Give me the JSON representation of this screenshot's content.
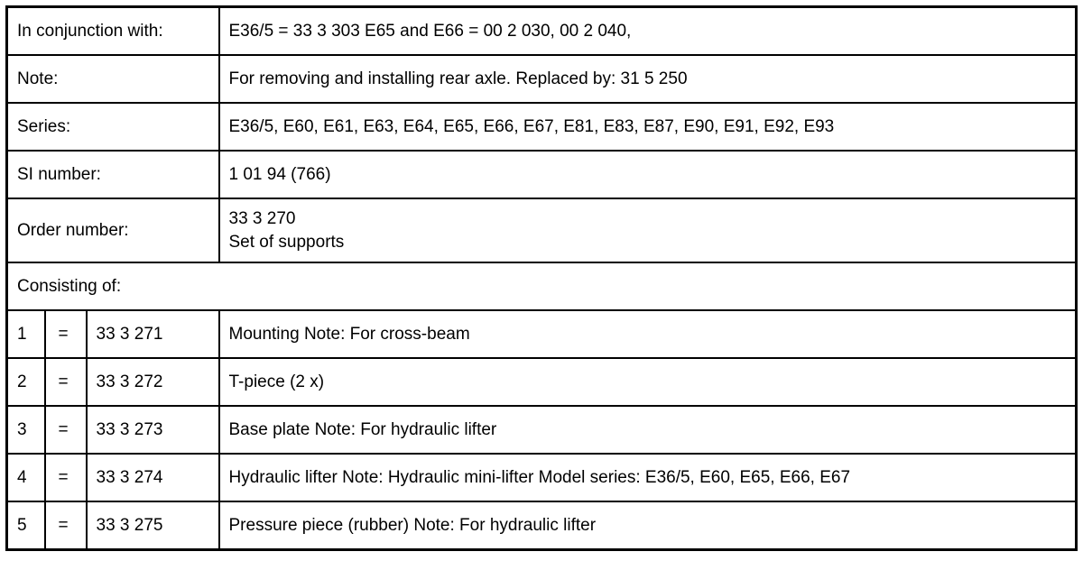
{
  "rows": [
    {
      "label": "In conjunction with:",
      "value": "E36/5 = 33 3 303 E65 and E66 = 00 2 030, 00 2 040,"
    },
    {
      "label": "Note:",
      "value": "For removing and installing rear axle. Replaced by: 31 5 250"
    },
    {
      "label": "Series:",
      "value": "E36/5, E60, E61, E63, E64, E65, E66, E67, E81, E83, E87, E90, E91, E92, E93"
    },
    {
      "label": "SI number:",
      "value": "1 01 94 (766)"
    }
  ],
  "order": {
    "label": "Order number:",
    "number": "33 3 270",
    "description": "Set of supports"
  },
  "consisting_label": "Consisting of:",
  "parts": [
    {
      "index": "1",
      "sign": "=",
      "number": "33 3 271",
      "description": "Mounting Note: For cross-beam"
    },
    {
      "index": "2",
      "sign": "=",
      "number": "33 3 272",
      "description": "T-piece (2 x)"
    },
    {
      "index": "3",
      "sign": "=",
      "number": "33 3 273",
      "description": "Base plate Note: For hydraulic lifter"
    },
    {
      "index": "4",
      "sign": "=",
      "number": "33 3 274",
      "description": "Hydraulic lifter Note: Hydraulic mini-lifter Model series: E36/5, E60, E65, E66, E67"
    },
    {
      "index": "5",
      "sign": "=",
      "number": "33 3 275",
      "description": "Pressure piece (rubber) Note: For hydraulic lifter"
    }
  ]
}
